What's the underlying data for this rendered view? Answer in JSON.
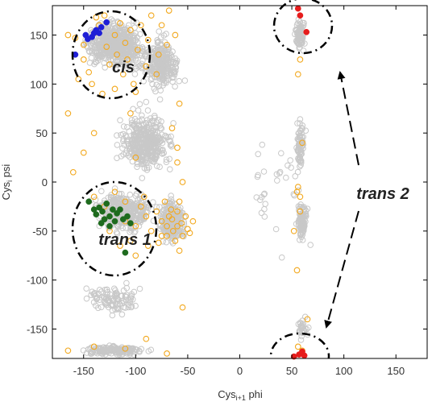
{
  "chart_data": {
    "type": "scatter",
    "xlabel_main": "Cys",
    "xlabel_sub": "i+1",
    "xlabel_tail": " phi",
    "ylabel_main": "Cys",
    "ylabel_sub": "i",
    "ylabel_tail": " psi",
    "xlim": [
      -180,
      180
    ],
    "ylim": [
      -180,
      180
    ],
    "xticks": [
      -150,
      -100,
      -50,
      0,
      50,
      100,
      150
    ],
    "yticks": [
      -150,
      -100,
      -50,
      0,
      50,
      100,
      150
    ],
    "grid": false,
    "colors": {
      "background_points": "#c8c8c8",
      "highlight_points": "#f2a81d",
      "cis": "#1f1fd6",
      "trans1": "#1e6b1e",
      "trans2": "#e61c1c",
      "annotation": "#000000"
    },
    "series": [
      {
        "marker": "open-circle",
        "color": "#f2a81d",
        "points": [
          [
            -165,
            150
          ],
          [
            -158,
            147
          ],
          [
            -150,
            140
          ],
          [
            -150,
            125
          ],
          [
            -145,
            112
          ],
          [
            -140,
            152
          ],
          [
            -138,
            168
          ],
          [
            -135,
            160
          ],
          [
            -130,
            170
          ],
          [
            -128,
            138
          ],
          [
            -125,
            120
          ],
          [
            -120,
            150
          ],
          [
            -118,
            130
          ],
          [
            -115,
            162
          ],
          [
            -112,
            110
          ],
          [
            -110,
            142
          ],
          [
            -108,
            125
          ],
          [
            -105,
            155
          ],
          [
            -102,
            100
          ],
          [
            -98,
            135
          ],
          [
            -95,
            160
          ],
          [
            -90,
            118
          ],
          [
            -88,
            145
          ],
          [
            -85,
            170
          ],
          [
            -80,
            110
          ],
          [
            -78,
            130
          ],
          [
            -75,
            160
          ],
          [
            -70,
            140
          ],
          [
            -68,
            175
          ],
          [
            -62,
            150
          ],
          [
            -155,
            105
          ],
          [
            -142,
            100
          ],
          [
            -132,
            90
          ],
          [
            -120,
            95
          ],
          [
            -100,
            92
          ],
          [
            -60,
            20
          ],
          [
            -55,
            0
          ],
          [
            -58,
            -20
          ],
          [
            -52,
            -35
          ],
          [
            -50,
            -48
          ],
          [
            -55,
            -55
          ],
          [
            -60,
            -45
          ],
          [
            -65,
            -38
          ],
          [
            -70,
            -55
          ],
          [
            -75,
            -40
          ],
          [
            -80,
            -30
          ],
          [
            -85,
            -50
          ],
          [
            -90,
            -35
          ],
          [
            -95,
            -25
          ],
          [
            -100,
            -45
          ],
          [
            -105,
            -60
          ],
          [
            -110,
            -40
          ],
          [
            -62,
            -60
          ],
          [
            -58,
            -70
          ],
          [
            -48,
            -52
          ],
          [
            -45,
            -40
          ],
          [
            -66,
            -28
          ],
          [
            -72,
            -20
          ],
          [
            -78,
            -62
          ],
          [
            -88,
            -65
          ],
          [
            -92,
            -15
          ],
          [
            -56,
            -42
          ],
          [
            -64,
            -50
          ],
          [
            -70,
            -45
          ],
          [
            -75,
            -55
          ],
          [
            -68,
            -35
          ],
          [
            -60,
            -30
          ],
          [
            -140,
            -15
          ],
          [
            -130,
            -25
          ],
          [
            -120,
            -10
          ],
          [
            -110,
            -20
          ],
          [
            -125,
            -50
          ],
          [
            -115,
            -65
          ],
          [
            -100,
            -75
          ],
          [
            -60,
            35
          ],
          [
            -65,
            55
          ],
          [
            -58,
            80
          ],
          [
            -100,
            25
          ],
          [
            -105,
            70
          ],
          [
            -140,
            50
          ],
          [
            -150,
            30
          ],
          [
            -160,
            10
          ],
          [
            -165,
            70
          ],
          [
            -55,
            -128
          ],
          [
            -90,
            -160
          ],
          [
            -110,
            -170
          ],
          [
            -140,
            -168
          ],
          [
            -70,
            -175
          ],
          [
            -165,
            -172
          ],
          [
            56,
            -168
          ],
          [
            60,
            -172
          ],
          [
            58,
            125
          ],
          [
            56,
            110
          ],
          [
            60,
            40
          ],
          [
            55,
            -10
          ],
          [
            58,
            -30
          ],
          [
            52,
            -50
          ],
          [
            58,
            -15
          ],
          [
            56,
            -5
          ],
          [
            55,
            -90
          ],
          [
            65,
            -140
          ]
        ]
      },
      {
        "name": "cis",
        "marker": "filled-circle",
        "color": "#1f1fd6",
        "points": [
          [
            -148,
            150
          ],
          [
            -142,
            148
          ],
          [
            -138,
            155
          ],
          [
            -135,
            152
          ],
          [
            -133,
            158
          ],
          [
            -128,
            163
          ],
          [
            -146,
            146
          ],
          [
            -140,
            152
          ],
          [
            -158,
            130
          ]
        ]
      },
      {
        "name": "trans 1",
        "marker": "filled-circle",
        "color": "#1e6b1e",
        "points": [
          [
            -145,
            -20
          ],
          [
            -140,
            -28
          ],
          [
            -138,
            -33
          ],
          [
            -135,
            -26
          ],
          [
            -132,
            -30
          ],
          [
            -130,
            -38
          ],
          [
            -128,
            -22
          ],
          [
            -125,
            -35
          ],
          [
            -122,
            -28
          ],
          [
            -120,
            -40
          ],
          [
            -118,
            -32
          ],
          [
            -115,
            -28
          ],
          [
            -112,
            -38
          ],
          [
            -108,
            -35
          ],
          [
            -105,
            -42
          ],
          [
            -110,
            -72
          ],
          [
            -125,
            -45
          ],
          [
            -133,
            -42
          ]
        ]
      },
      {
        "name": "trans 2",
        "marker": "filled-circle",
        "color": "#e61c1c",
        "points": [
          [
            56,
            177
          ],
          [
            58,
            170
          ],
          [
            64,
            153
          ],
          [
            52,
            -178
          ],
          [
            57,
            -176
          ],
          [
            60,
            -173
          ],
          [
            62,
            -177
          ]
        ]
      }
    ],
    "annotations": [
      {
        "text": "cis"
      },
      {
        "text": "trans 1"
      },
      {
        "text": "trans 2"
      }
    ]
  }
}
